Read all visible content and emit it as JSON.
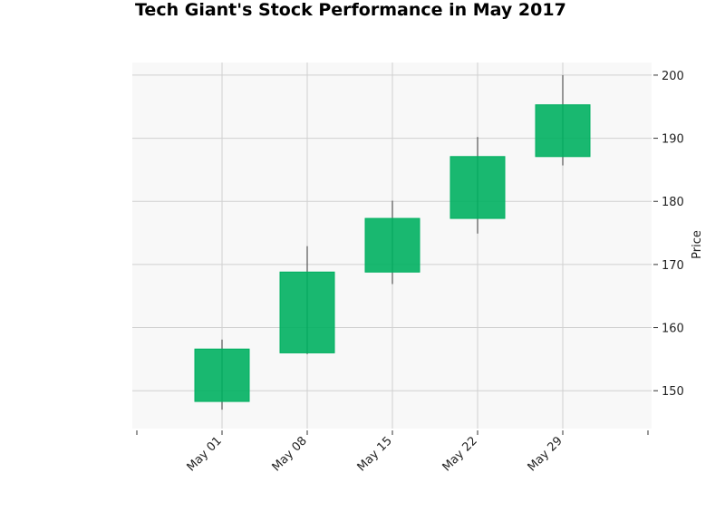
{
  "chart_data": {
    "type": "candlestick",
    "title": "Tech Giant's Stock Performance in May 2017",
    "xlabel": "",
    "ylabel": "Price",
    "x_tick_labels": [
      "May 01",
      "May 08",
      "May 15",
      "May 22",
      "May 29"
    ],
    "ylim": [
      144,
      202
    ],
    "y_ticks": [
      150,
      160,
      170,
      180,
      190,
      200
    ],
    "grid": true,
    "colors": {
      "up": "#00b060",
      "wick": "#555555",
      "plot_background": "#f8f8f8",
      "grid": "#d0d0d0"
    },
    "candles": [
      {
        "date": "May 01",
        "open": 148.3,
        "high": 158.1,
        "low": 147.0,
        "close": 156.6
      },
      {
        "date": "May 08",
        "open": 156.0,
        "high": 172.9,
        "low": 155.8,
        "close": 168.8
      },
      {
        "date": "May 15",
        "open": 168.8,
        "high": 180.1,
        "low": 166.9,
        "close": 177.3
      },
      {
        "date": "May 22",
        "open": 177.3,
        "high": 190.2,
        "low": 174.9,
        "close": 187.1
      },
      {
        "date": "May 29",
        "open": 187.1,
        "high": 200.0,
        "low": 185.7,
        "close": 195.3
      }
    ]
  }
}
